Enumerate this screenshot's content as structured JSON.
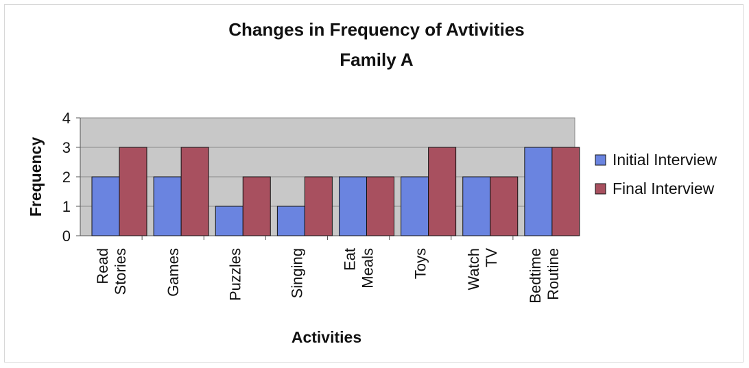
{
  "chart_data": {
    "type": "bar",
    "title": "Changes in Frequency of Avtivities",
    "subtitle": "Family A",
    "xlabel": "Activities",
    "ylabel": "Frequency",
    "ylim": [
      0,
      4
    ],
    "yticks": [
      "0",
      "1",
      "2",
      "3",
      "4"
    ],
    "categories": [
      [
        "Read",
        "Stories"
      ],
      [
        "Games"
      ],
      [
        "Puzzles"
      ],
      [
        "Singing"
      ],
      [
        "Eat",
        "Meals"
      ],
      [
        "Toys"
      ],
      [
        "Watch",
        "TV"
      ],
      [
        "Bedtime",
        "Routine"
      ]
    ],
    "series": [
      {
        "name": "Initial Interview",
        "values": [
          2,
          2,
          1,
          1,
          2,
          2,
          2,
          3
        ],
        "color": "#6a84e0"
      },
      {
        "name": "Final Interview",
        "values": [
          3,
          3,
          2,
          2,
          2,
          3,
          2,
          3
        ],
        "color": "#a8505f"
      }
    ],
    "grid": true,
    "legend": "right",
    "plot_background": "#c8c8c8"
  }
}
